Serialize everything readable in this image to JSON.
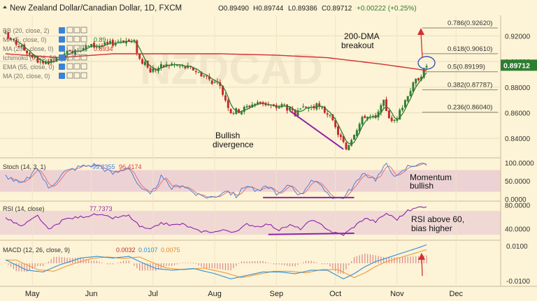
{
  "header": {
    "title": "New Zealand Dollar/Canadian Dollar, 1D, FXCM",
    "ohlc": [
      "O0.89490",
      "H0.89744",
      "L0.89386",
      "C0.89712"
    ],
    "change": "+0.00222 (+0.25%)"
  },
  "indicators": [
    {
      "label": "BB (20, close, 2)",
      "value": ""
    },
    {
      "label": "MA (5, close, 0)",
      "value": "0.89"
    },
    {
      "label": "MA (200, close, 0)",
      "value": "0.8934"
    },
    {
      "label": "Ichimoku (9, 26, 52, 26)",
      "value": ""
    },
    {
      "label": "EMA (55, close, 0)",
      "value": ""
    },
    {
      "label": "MA (20, close, 0)",
      "value": ""
    }
  ],
  "annotations": {
    "dma_line1": "200-DMA",
    "dma_line2": "breakout",
    "div_line1": "Bullish",
    "div_line2": "divergence",
    "mom_line1": "Momentum",
    "mom_line2": "bullish",
    "rsi_line1": "RSI above 60,",
    "rsi_line2": "bias higher"
  },
  "fib_levels": [
    {
      "label": "0.786(0.92620)",
      "value": 0.9262
    },
    {
      "label": "0.618(0.90610)",
      "value": 0.9061
    },
    {
      "label": "0.5(0.89199)",
      "value": 0.892
    },
    {
      "label": "0.382(0.87787)",
      "value": 0.8779
    },
    {
      "label": "0.236(0.86040)",
      "value": 0.8604
    }
  ],
  "price_axis": {
    "ticks": [
      {
        "label": "0.92000",
        "value": 0.92
      },
      {
        "label": "0.90000",
        "value": 0.9
      },
      {
        "label": "0.88000",
        "value": 0.88
      },
      {
        "label": "0.86000",
        "value": 0.86
      },
      {
        "label": "0.84000",
        "value": 0.84
      }
    ],
    "current_label": "0.89712",
    "current_value": 0.89712,
    "range": [
      0.827,
      0.936
    ]
  },
  "stoch": {
    "label": "Stoch (14, 3, 1)",
    "k_value": "99.2355",
    "d_value": "96.4174",
    "range": [
      -4,
      110
    ],
    "ticks": [
      {
        "label": "100.0000",
        "value": 100
      },
      {
        "label": "50.0000",
        "value": 50
      },
      {
        "label": "0.0000",
        "value": 0
      }
    ],
    "band": [
      20,
      80
    ]
  },
  "rsi": {
    "label": "RSI (14, close)",
    "value": "77.7373",
    "range": [
      22,
      84
    ],
    "ticks": [
      {
        "label": "80.0000",
        "value": 80
      },
      {
        "label": "40.0000",
        "value": 40
      }
    ],
    "band": [
      30,
      70
    ]
  },
  "macd": {
    "label": "MACD (12, 26, close, 9)",
    "hist_value": "0.0032",
    "macd_value": "0.0107",
    "signal_value": "0.0075",
    "range": [
      -0.0125,
      0.0125
    ],
    "ticks": [
      {
        "label": "0.0100",
        "value": 0.01
      },
      {
        "label": "-0.0100",
        "value": -0.01
      }
    ]
  },
  "colors": {
    "background": "#fdf3d6",
    "candle_up": "#2e7d32",
    "candle_down": "#c62828",
    "ma200": "#d32f2f",
    "ma_fast": "#2e7d32",
    "divergence": "#8e24aa",
    "stoch_k": "#4f7fd6",
    "stoch_d": "#e57373",
    "rsi": "#8e24aa",
    "macd": "#2f8fd8",
    "signal": "#f09a3a",
    "panel_band": "#e7c7d3"
  },
  "chart_data": {
    "type": "candlestick",
    "title": "New Zealand Dollar/Canadian Dollar, 1D, FXCM",
    "x_labels": [
      "May",
      "Jun",
      "Jul",
      "Aug",
      "Sep",
      "Oct",
      "Nov",
      "Dec"
    ],
    "x_label_index": [
      10,
      32,
      55,
      78,
      101,
      123,
      146,
      168
    ],
    "num_bars": 158,
    "anchors": [
      [
        0,
        0.92
      ],
      [
        8,
        0.908
      ],
      [
        14,
        0.897
      ],
      [
        20,
        0.902
      ],
      [
        26,
        0.91
      ],
      [
        32,
        0.912
      ],
      [
        38,
        0.913
      ],
      [
        43,
        0.917
      ],
      [
        48,
        0.915
      ],
      [
        50,
        0.902
      ],
      [
        54,
        0.893
      ],
      [
        58,
        0.896
      ],
      [
        62,
        0.898
      ],
      [
        66,
        0.896
      ],
      [
        70,
        0.894
      ],
      [
        75,
        0.888
      ],
      [
        80,
        0.88
      ],
      [
        84,
        0.861
      ],
      [
        88,
        0.862
      ],
      [
        92,
        0.867
      ],
      [
        96,
        0.868
      ],
      [
        100,
        0.864
      ],
      [
        104,
        0.866
      ],
      [
        108,
        0.858
      ],
      [
        112,
        0.864
      ],
      [
        116,
        0.865
      ],
      [
        120,
        0.86
      ],
      [
        123,
        0.848
      ],
      [
        127,
        0.832
      ],
      [
        130,
        0.845
      ],
      [
        134,
        0.858
      ],
      [
        138,
        0.855
      ],
      [
        141,
        0.868
      ],
      [
        144,
        0.852
      ],
      [
        147,
        0.86
      ],
      [
        150,
        0.875
      ],
      [
        153,
        0.885
      ],
      [
        156,
        0.893
      ],
      [
        157,
        0.8971
      ]
    ],
    "ma200": [
      [
        0,
        0.906
      ],
      [
        20,
        0.903
      ],
      [
        40,
        0.906
      ],
      [
        60,
        0.906
      ],
      [
        80,
        0.906
      ],
      [
        100,
        0.905
      ],
      [
        120,
        0.903
      ],
      [
        140,
        0.898
      ],
      [
        157,
        0.893
      ]
    ],
    "ma_fast_lag": 4,
    "stoch_anchors": [
      [
        0,
        65
      ],
      [
        6,
        40
      ],
      [
        12,
        85
      ],
      [
        16,
        30
      ],
      [
        22,
        75
      ],
      [
        28,
        90
      ],
      [
        34,
        95
      ],
      [
        40,
        70
      ],
      [
        46,
        90
      ],
      [
        50,
        30
      ],
      [
        54,
        10
      ],
      [
        58,
        60
      ],
      [
        62,
        30
      ],
      [
        66,
        40
      ],
      [
        72,
        8
      ],
      [
        78,
        5
      ],
      [
        82,
        25
      ],
      [
        86,
        8
      ],
      [
        90,
        40
      ],
      [
        94,
        20
      ],
      [
        98,
        35
      ],
      [
        102,
        12
      ],
      [
        106,
        40
      ],
      [
        110,
        10
      ],
      [
        114,
        55
      ],
      [
        118,
        30
      ],
      [
        122,
        5
      ],
      [
        126,
        2
      ],
      [
        130,
        40
      ],
      [
        134,
        70
      ],
      [
        138,
        55
      ],
      [
        142,
        95
      ],
      [
        146,
        60
      ],
      [
        150,
        90
      ],
      [
        154,
        98
      ],
      [
        157,
        99
      ]
    ],
    "rsi_anchors": [
      [
        0,
        58
      ],
      [
        6,
        44
      ],
      [
        12,
        62
      ],
      [
        16,
        38
      ],
      [
        22,
        56
      ],
      [
        28,
        60
      ],
      [
        34,
        64
      ],
      [
        40,
        58
      ],
      [
        46,
        62
      ],
      [
        50,
        44
      ],
      [
        54,
        38
      ],
      [
        58,
        50
      ],
      [
        62,
        46
      ],
      [
        66,
        48
      ],
      [
        72,
        36
      ],
      [
        78,
        35
      ],
      [
        82,
        38
      ],
      [
        86,
        34
      ],
      [
        90,
        48
      ],
      [
        94,
        44
      ],
      [
        98,
        48
      ],
      [
        102,
        38
      ],
      [
        106,
        46
      ],
      [
        110,
        40
      ],
      [
        114,
        54
      ],
      [
        118,
        46
      ],
      [
        122,
        34
      ],
      [
        126,
        30
      ],
      [
        130,
        44
      ],
      [
        134,
        58
      ],
      [
        138,
        52
      ],
      [
        142,
        66
      ],
      [
        146,
        56
      ],
      [
        150,
        70
      ],
      [
        154,
        76
      ],
      [
        157,
        78
      ]
    ],
    "macd_anchors": [
      [
        0,
        0.002
      ],
      [
        8,
        -0.004
      ],
      [
        14,
        -0.005
      ],
      [
        20,
        -0.001
      ],
      [
        28,
        0.003
      ],
      [
        34,
        0.004
      ],
      [
        40,
        0.003
      ],
      [
        46,
        0.004
      ],
      [
        50,
        0.001
      ],
      [
        56,
        -0.003
      ],
      [
        62,
        -0.004
      ],
      [
        70,
        -0.003
      ],
      [
        78,
        -0.006
      ],
      [
        84,
        -0.009
      ],
      [
        90,
        -0.007
      ],
      [
        96,
        -0.005
      ],
      [
        102,
        -0.005
      ],
      [
        108,
        -0.006
      ],
      [
        114,
        -0.004
      ],
      [
        120,
        -0.004
      ],
      [
        126,
        -0.009
      ],
      [
        130,
        -0.006
      ],
      [
        134,
        -0.002
      ],
      [
        138,
        0.001
      ],
      [
        142,
        0.003
      ],
      [
        146,
        0.005
      ],
      [
        150,
        0.007
      ],
      [
        154,
        0.009
      ],
      [
        157,
        0.0107
      ]
    ],
    "divergence_price": [
      [
        106,
        0.8615
      ],
      [
        126,
        0.8315
      ]
    ],
    "divergence_stoch": [
      [
        96,
        4
      ],
      [
        130,
        4
      ]
    ],
    "divergence_rsi": [
      [
        98,
        30.5
      ],
      [
        130,
        32.5
      ]
    ]
  }
}
